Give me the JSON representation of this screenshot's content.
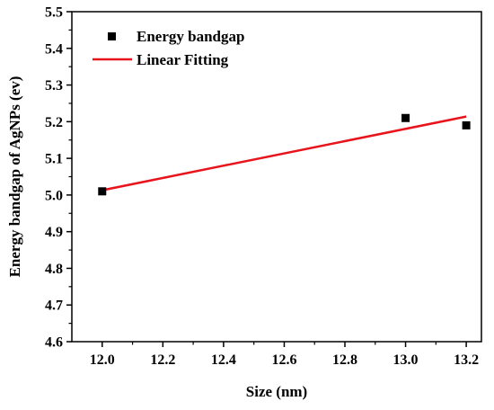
{
  "chart_data": {
    "type": "scatter",
    "xlabel": "Size (nm)",
    "ylabel": "Energy bandgap of AgNPs (ev)",
    "xlim": [
      11.9,
      13.25
    ],
    "ylim": [
      4.6,
      5.5
    ],
    "x_ticks": [
      "12.0",
      "12.2",
      "12.4",
      "12.6",
      "12.8",
      "13.0",
      "13.2"
    ],
    "y_ticks": [
      "4.6",
      "4.7",
      "4.8",
      "4.9",
      "5.0",
      "5.1",
      "5.2",
      "5.3",
      "5.4",
      "5.5"
    ],
    "series": [
      {
        "name": "Energy bandgap",
        "kind": "scatter",
        "marker": "square",
        "color": "#000000",
        "points": [
          {
            "x": 12.0,
            "y": 5.01
          },
          {
            "x": 13.0,
            "y": 5.21
          },
          {
            "x": 13.2,
            "y": 5.19
          }
        ]
      },
      {
        "name": "Linear Fitting",
        "kind": "line",
        "color": "#e8131b",
        "points": [
          {
            "x": 12.0,
            "y": 5.013
          },
          {
            "x": 13.2,
            "y": 5.214
          }
        ]
      }
    ],
    "legend_position": "top-left",
    "grid": false
  }
}
